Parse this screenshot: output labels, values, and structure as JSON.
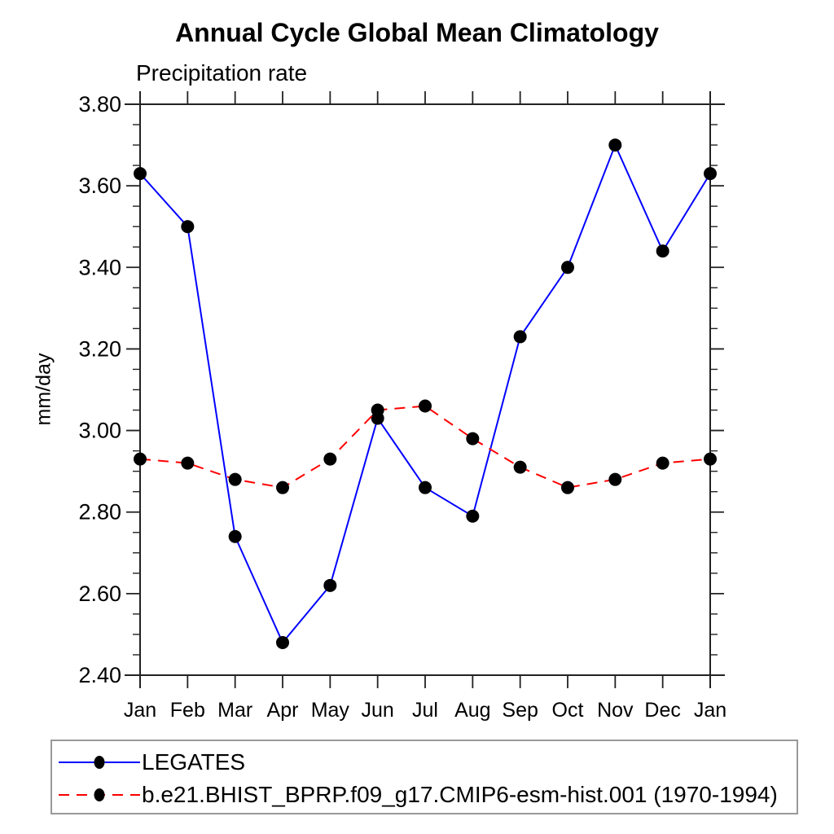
{
  "chart_data": {
    "type": "line",
    "title": "Annual Cycle Global Mean Climatology",
    "subtitle": "Precipitation rate",
    "ylabel": "mm/day",
    "xlabel": "",
    "categories": [
      "Jan",
      "Feb",
      "Mar",
      "Apr",
      "May",
      "Jun",
      "Jul",
      "Aug",
      "Sep",
      "Oct",
      "Nov",
      "Dec",
      "Jan"
    ],
    "series": [
      {
        "name": "LEGATES",
        "color": "#0000ff",
        "line_style": "solid",
        "marker": "filled-circle",
        "marker_color": "#000000",
        "values": [
          3.63,
          3.5,
          2.74,
          2.48,
          2.62,
          3.03,
          2.86,
          2.79,
          3.23,
          3.4,
          3.7,
          3.44,
          3.63
        ]
      },
      {
        "name": "b.e21.BHIST_BPRP.f09_g17.CMIP6-esm-hist.001 (1970-1994)",
        "color": "#ff0000",
        "line_style": "dashed",
        "marker": "filled-circle",
        "marker_color": "#000000",
        "values": [
          2.93,
          2.92,
          2.88,
          2.86,
          2.93,
          3.05,
          3.06,
          2.98,
          2.91,
          2.86,
          2.88,
          2.92,
          2.93
        ]
      }
    ],
    "ylim": [
      2.4,
      3.8
    ],
    "ytick_major_step": 0.2,
    "ytick_minor_step": 0.05,
    "ytick_label_format": "2-decimals",
    "grid": false,
    "axis_ticks": "outward-all-four-sides",
    "legend_position": "bottom-left-box"
  }
}
